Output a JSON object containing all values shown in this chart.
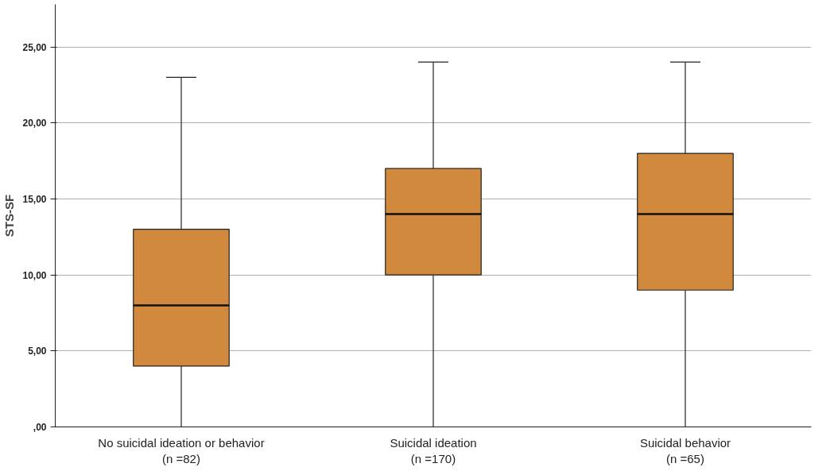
{
  "chart_data": {
    "type": "box",
    "ylabel": "STS-SF",
    "categories": [
      "No suicidal ideation or behavior\n(n =82)",
      "Suicidal ideation\n(n =170)",
      "Suicidal behavior\n(n =65)"
    ],
    "boxes": [
      {
        "low": 0,
        "q1": 4,
        "median": 8,
        "q3": 13,
        "high": 23
      },
      {
        "low": 0,
        "q1": 10,
        "median": 14,
        "q3": 17,
        "high": 24
      },
      {
        "low": 0,
        "q1": 9,
        "median": 14,
        "q3": 18,
        "high": 24
      }
    ],
    "color": "#d0893d",
    "ylim": [
      0,
      27.8
    ],
    "yticks": [
      {
        "value": 0,
        "label": ",00"
      },
      {
        "value": 5,
        "label": "5,00"
      },
      {
        "value": 10,
        "label": "10,00"
      },
      {
        "value": 15,
        "label": "15,00"
      },
      {
        "value": 20,
        "label": "20,00"
      },
      {
        "value": 25,
        "label": "25,00"
      }
    ],
    "grid": "y"
  }
}
